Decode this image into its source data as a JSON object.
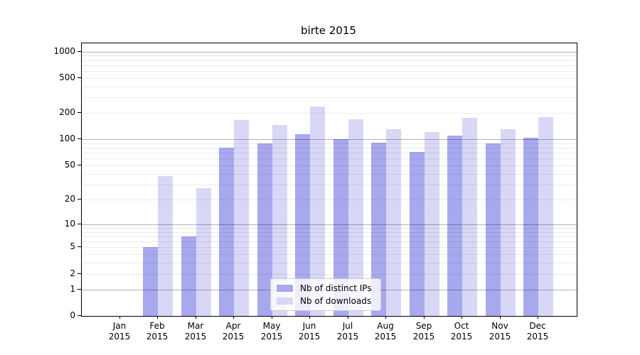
{
  "title": "birte 2015",
  "chart_data": {
    "type": "bar",
    "title": "birte 2015",
    "categories": [
      "Jan",
      "Feb",
      "Mar",
      "Apr",
      "May",
      "Jun",
      "Jul",
      "Aug",
      "Sep",
      "Oct",
      "Nov",
      "Dec"
    ],
    "year": "2015",
    "series": [
      {
        "name": "Nb of distinct IPs",
        "color": "#a8a8ee",
        "values": [
          0,
          5,
          7,
          80,
          90,
          115,
          100,
          92,
          72,
          110,
          90,
          105
        ]
      },
      {
        "name": "Nb of downloads",
        "color": "#d8d8f6",
        "values": [
          0,
          38,
          27,
          165,
          145,
          235,
          168,
          130,
          120,
          175,
          130,
          180
        ]
      }
    ],
    "y_axis": {
      "scale": "log1p",
      "ticks": [
        0,
        1,
        2,
        5,
        10,
        20,
        50,
        100,
        200,
        500,
        1000
      ],
      "tick_labels": [
        "0",
        "1",
        "2",
        "5",
        "10",
        "20",
        "50",
        "100",
        "200",
        "500",
        "1000"
      ],
      "major_gridlines": [
        1,
        10,
        100,
        1000
      ],
      "minor_gridlines": [
        2,
        3,
        4,
        5,
        6,
        7,
        8,
        9,
        20,
        30,
        40,
        50,
        60,
        70,
        80,
        90,
        200,
        300,
        400,
        500,
        600,
        700,
        800,
        900
      ],
      "max": 1240
    },
    "grid": "on",
    "legend_position": "lower-center",
    "colors": {
      "axis": "#000000",
      "major_grid": "#b3b3b3",
      "minor_grid": "#ebebeb"
    }
  }
}
